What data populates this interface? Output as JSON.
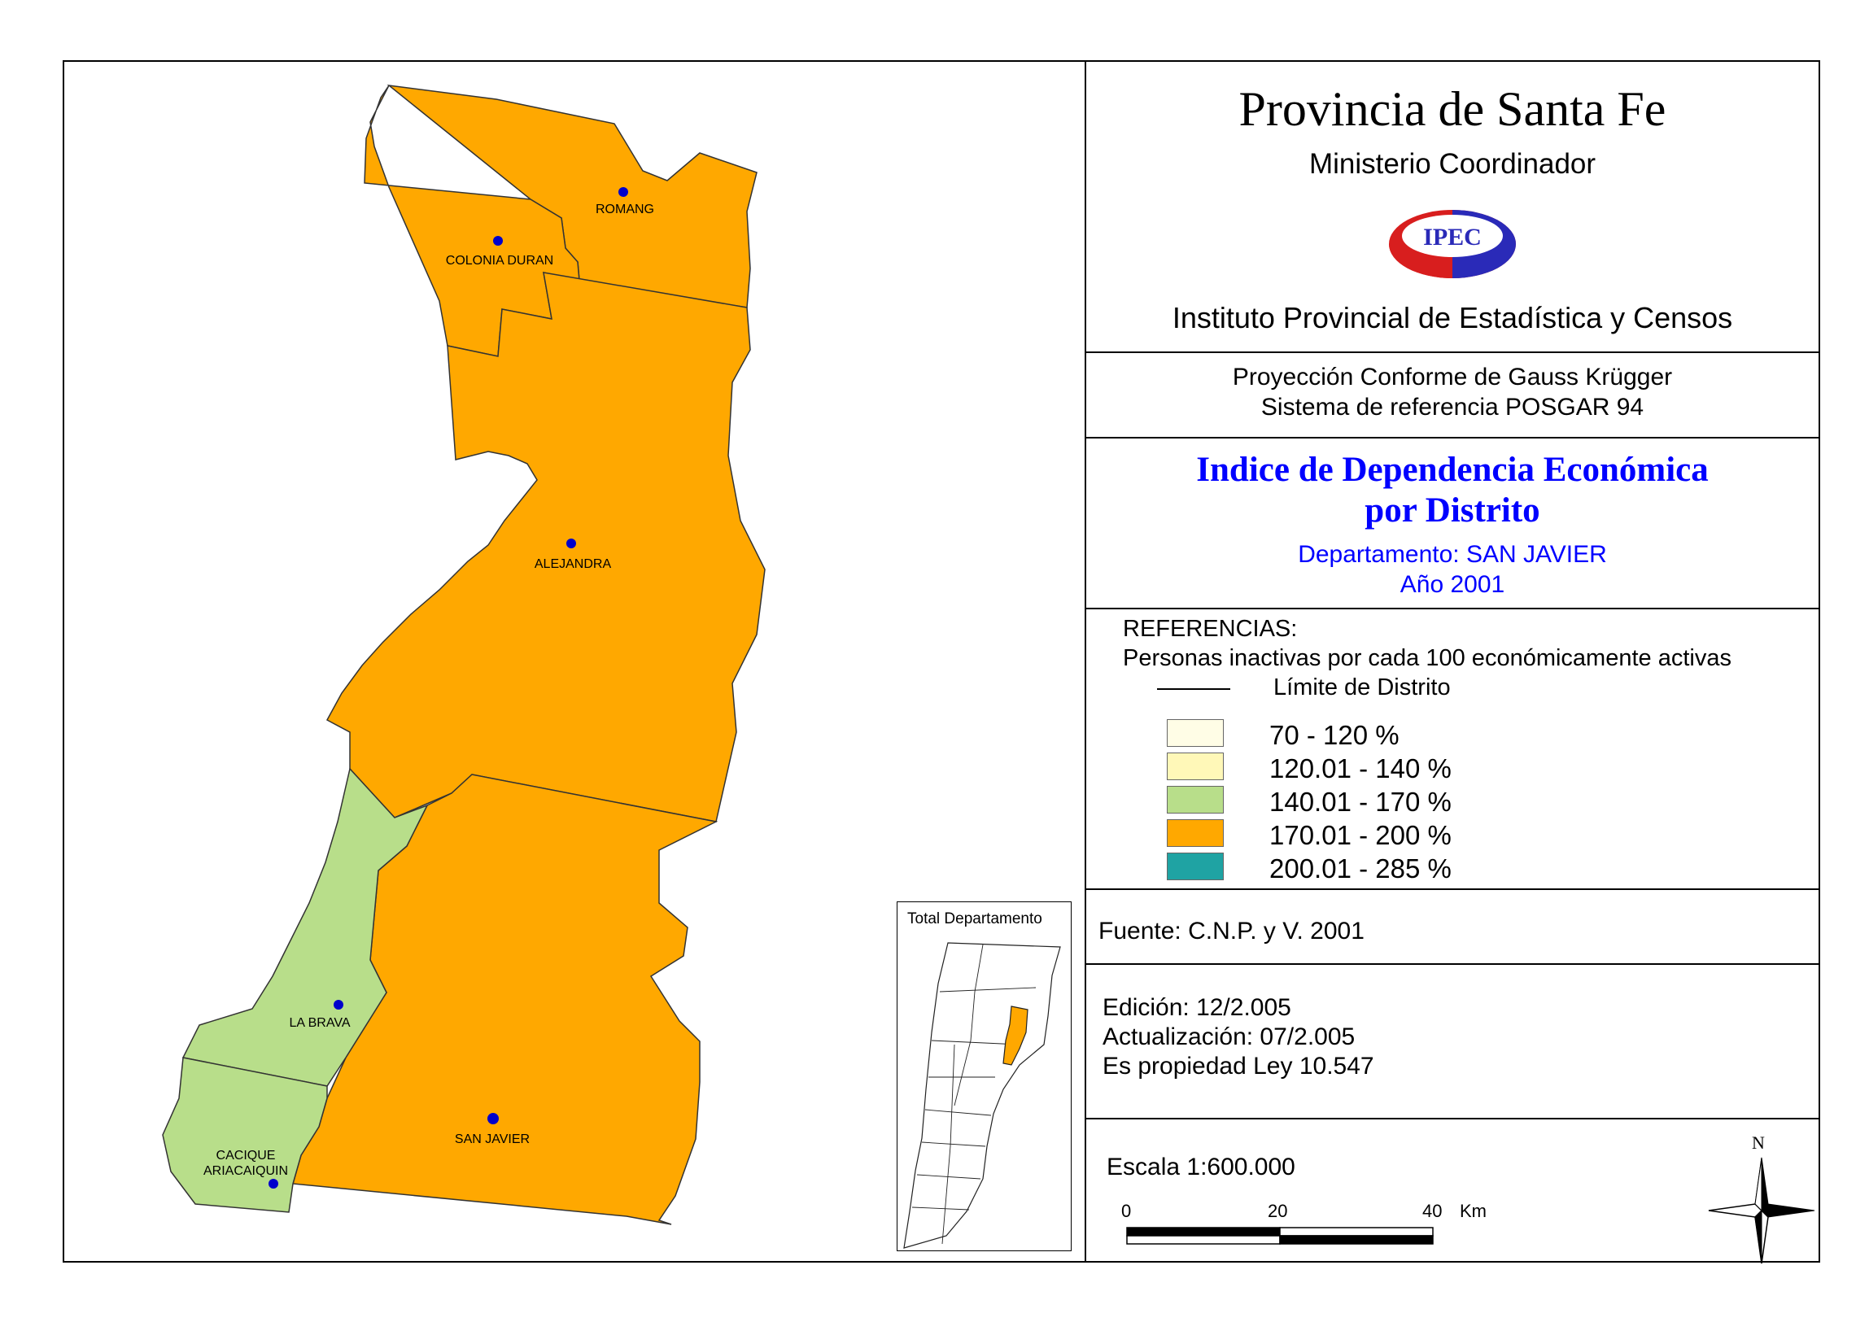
{
  "header": {
    "title": "Provincia de Santa Fe",
    "ministry": "Ministerio Coordinador",
    "logo_text": "IPEC",
    "institute": "Instituto Provincial de Estadística y Censos"
  },
  "projection": {
    "line1": "Proyección Conforme de Gauss Krügger",
    "line2": "Sistema de referencia POSGAR 94"
  },
  "map_title": {
    "line1": "Indice de Dependencia Económica",
    "line2": "por Distrito",
    "department": "Departamento:  SAN JAVIER",
    "year": "Año 2001"
  },
  "legend": {
    "heading": "REFERENCIAS:",
    "subheading": "Personas inactivas por cada 100 económicamente activas",
    "boundary_label": "Límite de  Distrito",
    "classes": [
      {
        "label": "70 - 120 %",
        "color": "#FFFDE6"
      },
      {
        "label": "120.01 - 140 %",
        "color": "#FFF8B8"
      },
      {
        "label": "140.01 - 170 %",
        "color": "#B8DE8A"
      },
      {
        "label": "170.01 - 200 %",
        "color": "#FFA800"
      },
      {
        "label": "200.01 - 285 %",
        "color": "#1FA3A3"
      }
    ]
  },
  "source": "Fuente:  C.N.P. y V. 2001",
  "edition": {
    "edicion": "Edición:  12/2.005",
    "actualizacion": "Actualización:  07/2.005",
    "propiedad": "Es propiedad Ley 10.547"
  },
  "scale": {
    "text": "Escala 1:600.000",
    "ticks": [
      "0",
      "20",
      "40"
    ],
    "unit": "Km"
  },
  "north_label": "N",
  "inset_title": "Total Departamento",
  "districts": [
    {
      "name": "ROMANG",
      "class": 3
    },
    {
      "name": "COLONIA DURAN",
      "class": 3
    },
    {
      "name": "ALEJANDRA",
      "class": 3
    },
    {
      "name": "LA BRAVA",
      "class": 2
    },
    {
      "name": "CACIQUE",
      "class": 2
    },
    {
      "name": "ARIACAIQUIN",
      "class": 2
    },
    {
      "name": "SAN JAVIER",
      "class": 3
    }
  ],
  "colors": {
    "orange": "#FFA800",
    "green": "#B8DE8A",
    "blue_title": "#0000FF",
    "town_dot": "#0000CC"
  }
}
